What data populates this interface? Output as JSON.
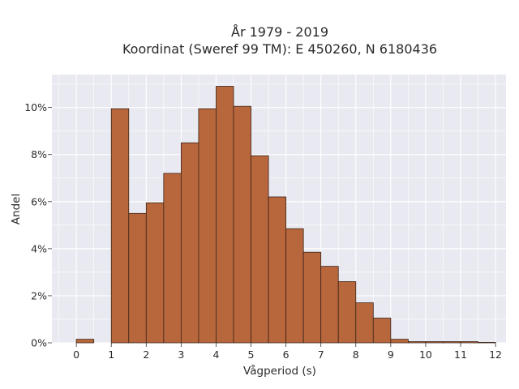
{
  "chart_data": {
    "type": "bar",
    "title_line1": "År 1979 - 2019",
    "title_line2": "Koordinat (Sweref 99 TM): E 450260, N 6180436",
    "xlabel": "Vågperiod (s)",
    "ylabel": "Andel",
    "xlim": [
      -0.7,
      12.3
    ],
    "ylim": [
      0,
      11.4
    ],
    "x_ticks": [
      0,
      1,
      2,
      3,
      4,
      5,
      6,
      7,
      8,
      9,
      10,
      11,
      12
    ],
    "y_ticks": [
      0,
      2,
      4,
      6,
      8,
      10
    ],
    "y_tick_labels": [
      "0%",
      "2%",
      "4%",
      "6%",
      "8%",
      "10%"
    ],
    "grid": true,
    "colors": {
      "bar_fill": "#b8673c",
      "bar_edge": "#3a2418",
      "plot_background": "#e9e9f1",
      "grid": "#ffffff"
    },
    "bin_width": 0.5,
    "bins": [
      {
        "left": 0.0,
        "value": 0.15
      },
      {
        "left": 1.0,
        "value": 9.95
      },
      {
        "left": 1.5,
        "value": 5.5
      },
      {
        "left": 2.0,
        "value": 5.95
      },
      {
        "left": 2.5,
        "value": 7.2
      },
      {
        "left": 3.0,
        "value": 8.5
      },
      {
        "left": 3.5,
        "value": 9.95
      },
      {
        "left": 4.0,
        "value": 10.9
      },
      {
        "left": 4.5,
        "value": 10.05
      },
      {
        "left": 5.0,
        "value": 7.95
      },
      {
        "left": 5.5,
        "value": 6.2
      },
      {
        "left": 6.0,
        "value": 4.85
      },
      {
        "left": 6.5,
        "value": 3.85
      },
      {
        "left": 7.0,
        "value": 3.25
      },
      {
        "left": 7.5,
        "value": 2.6
      },
      {
        "left": 8.0,
        "value": 1.7
      },
      {
        "left": 8.5,
        "value": 1.05
      },
      {
        "left": 9.0,
        "value": 0.15
      },
      {
        "left": 9.5,
        "value": 0.05
      },
      {
        "left": 10.0,
        "value": 0.05
      },
      {
        "left": 10.5,
        "value": 0.05
      },
      {
        "left": 11.0,
        "value": 0.05
      },
      {
        "left": 11.5,
        "value": 0.02
      }
    ]
  }
}
